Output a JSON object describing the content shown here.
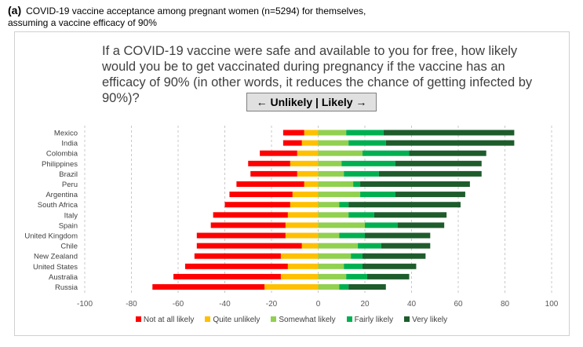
{
  "figure": {
    "panel_tag": "(a)",
    "caption_line1": "COVID-19 vaccine acceptance among pregnant women (n=5294) for themselves,",
    "caption_line2": "assuming a vaccine efficacy of 90%"
  },
  "question": {
    "text": "If a COVID-19 vaccine were safe and available to you for free, how likely would you be to get vaccinated during pregnancy if the vaccine has an efficacy of  90% (in other words, it reduces the chance of getting infected by 90%)?",
    "direction_label": "← Unlikely | Likely →"
  },
  "chart_data": {
    "type": "bar",
    "orientation": "horizontal-diverging-stacked",
    "title": "",
    "xlabel": "",
    "ylabel": "",
    "xlim": [
      -100,
      100
    ],
    "xticks": [
      -100,
      -80,
      -60,
      -40,
      -20,
      0,
      20,
      40,
      60,
      80,
      100
    ],
    "grid": "vertical dashed",
    "legend_position": "bottom",
    "categories": [
      "Mexico",
      "India",
      "Colombia",
      "Philippines",
      "Brazil",
      "Peru",
      "Argentina",
      "South Africa",
      "Italy",
      "Spain",
      "United Kingdom",
      "Chile",
      "New Zealand",
      "United States",
      "Australia",
      "Russia"
    ],
    "series": [
      {
        "name": "Not at all likely",
        "color": "#ff0000",
        "side": "negative",
        "values": [
          9,
          8,
          16,
          18,
          20,
          29,
          27,
          28,
          32,
          32,
          38,
          45,
          37,
          44,
          46,
          48
        ]
      },
      {
        "name": "Quite unlikely",
        "color": "#ffc000",
        "side": "negative",
        "values": [
          6,
          7,
          9,
          12,
          9,
          6,
          11,
          12,
          13,
          14,
          14,
          7,
          16,
          13,
          16,
          23
        ]
      },
      {
        "name": "Somewhat likely",
        "color": "#92d050",
        "side": "positive",
        "values": [
          12,
          13,
          19,
          10,
          11,
          15,
          18,
          9,
          13,
          20,
          9,
          17,
          14,
          11,
          12,
          9
        ]
      },
      {
        "name": "Fairly likely",
        "color": "#00b050",
        "side": "positive",
        "values": [
          16,
          16,
          20,
          23,
          15,
          3,
          15,
          4,
          11,
          14,
          11,
          10,
          5,
          8,
          9,
          4
        ]
      },
      {
        "name": "Very likely",
        "color": "#1e5c2c",
        "side": "positive",
        "values": [
          56,
          55,
          33,
          37,
          44,
          47,
          30,
          48,
          31,
          20,
          28,
          21,
          27,
          23,
          18,
          16
        ]
      }
    ]
  }
}
